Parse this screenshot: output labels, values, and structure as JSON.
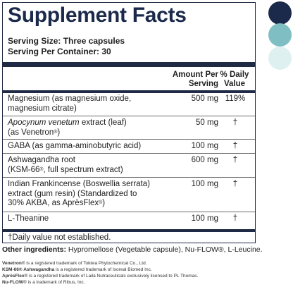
{
  "panel": {
    "title": "Supplement Facts",
    "serving_size": "Serving Size: Three capsules",
    "servings_per_container": "Serving Per Container: 30",
    "header_amount_1": "Amount Per",
    "header_amount_2": "Serving",
    "header_dv_1": "% Daily",
    "header_dv_2": "Value",
    "footnote": "†Daily value not established."
  },
  "ingredients": [
    {
      "line1": "Magnesium (as magnesium oxide,",
      "line2": "magnesium citrate)",
      "amount": "500 mg",
      "dv": "119%"
    },
    {
      "line1_italic": "Apocynum venetum",
      "line1_rest": " extract (leaf)",
      "line2_a": "(as Venetron",
      "line2_sup": "®",
      "line2_b": ")",
      "amount": "50 mg",
      "dv": "†"
    },
    {
      "line1": "GABA (as gamma-aminobutyric acid)",
      "amount": "100 mg",
      "dv": "†"
    },
    {
      "line1": "Ashwagandha root",
      "line2_a": "(KSM-66",
      "line2_sup": "®",
      "line2_b": ", full spectrum extract)",
      "amount": "600 mg",
      "dv": "†"
    },
    {
      "line1": "Indian Frankincense (Boswellia serrata)",
      "line2": "extract (gum resin) (Standardized to",
      "line3_a": "30% AKBA, as AprèsFlex",
      "line3_sup": "®",
      "line3_b": ")",
      "amount": "100 mg",
      "dv": "†"
    },
    {
      "line1": "L-Theanine",
      "amount": "100 mg",
      "dv": "†"
    }
  ],
  "other": {
    "label": "Other ingredients:",
    "text": " Hypromellose (Vegetable capsule), Nu-FLOW®, L-Leucine."
  },
  "trademarks": [
    {
      "bold": "Venetron",
      "rest": "® is a registered trademark of Tokiwa Phytochemical Co., Ltd."
    },
    {
      "bold": "KSM-66® Ashwagandha",
      "rest": " is a registered trademark of Ixoreal Biomed Inc."
    },
    {
      "bold": "AprèsFlex",
      "rest": "® is a registered trademark of Laila Nutraceuticals exclusively licensed to PL Thomas."
    },
    {
      "bold": "Nu-FLOW",
      "rest": "® is a trademark of Ribus, Inc."
    }
  ],
  "swatches": {
    "dark_navy": "#1b2a4a",
    "teal": "#7fbfc3",
    "light_teal": "#dff0f1"
  }
}
